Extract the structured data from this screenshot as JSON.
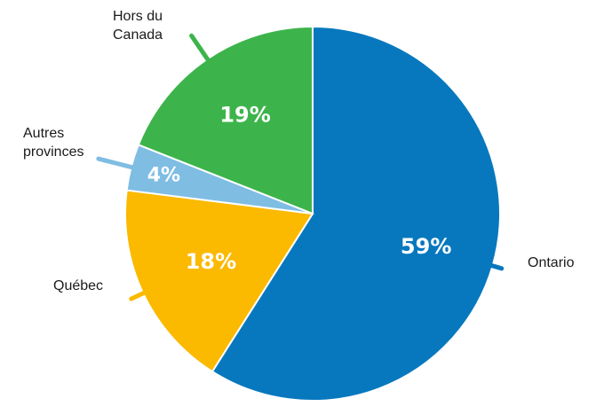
{
  "chart_data": {
    "type": "pie",
    "title": "",
    "colors": {
      "Ontario": "#0778be",
      "Québec": "#fbb900",
      "Autres provinces": "#7fbde3",
      "Hors du Canada": "#3db44b"
    },
    "slices": [
      {
        "category": "Ontario",
        "value": 59,
        "value_label": "59%",
        "label_lines": [
          "Ontario"
        ]
      },
      {
        "category": "Québec",
        "value": 18,
        "value_label": "18%",
        "label_lines": [
          "Québec"
        ]
      },
      {
        "category": "Autres provinces",
        "value": 4,
        "value_label": "4%",
        "label_lines": [
          "Autres",
          "provinces"
        ]
      },
      {
        "category": "Hors du Canada",
        "value": 19,
        "value_label": "19%",
        "label_lines": [
          "Hors du",
          "Canada"
        ]
      }
    ]
  }
}
